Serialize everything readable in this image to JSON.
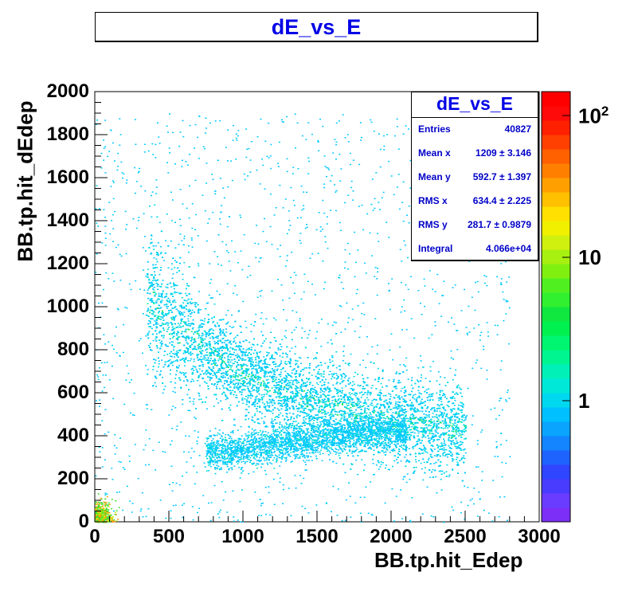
{
  "chart_data": {
    "type": "heatmap",
    "title": "dE_vs_E",
    "xlabel": "BB.tp.hit_Edep",
    "ylabel": "BB.tp.hit_dEdep",
    "xlim": [
      0,
      3000
    ],
    "ylim": [
      0,
      2000
    ],
    "x_ticks": [
      "0",
      "500",
      "1000",
      "1500",
      "2000",
      "2500",
      "3000"
    ],
    "y_ticks": [
      "0",
      "200",
      "400",
      "600",
      "800",
      "1000",
      "1200",
      "1400",
      "1600",
      "1800",
      "2000"
    ],
    "z_scale": "log",
    "palette_labels": [
      {
        "base": "10",
        "exp": "2",
        "value": 100
      },
      {
        "base": "10",
        "exp": "",
        "value": 10
      },
      {
        "base": "1",
        "exp": "",
        "value": 1
      }
    ],
    "bands": [
      {
        "x": [
          350,
          500,
          700,
          900,
          1100,
          1300,
          1500,
          1700,
          1900,
          2100,
          2300,
          2500
        ],
        "y": [
          1050,
          920,
          820,
          720,
          650,
          600,
          560,
          520,
          490,
          460,
          440,
          430
        ]
      },
      {
        "x": [
          750,
          900,
          1100,
          1300,
          1500,
          1700,
          1900,
          2100
        ],
        "y": [
          330,
          330,
          350,
          370,
          390,
          410,
          420,
          430
        ]
      }
    ],
    "hotspot": {
      "x": [
        0,
        100
      ],
      "y": [
        0,
        80
      ]
    },
    "stats": {
      "title": "dE_vs_E",
      "entries_label": "Entries",
      "entries": "40827",
      "meanx_label": "Mean x",
      "meanx": "1209 ±  3.146",
      "meany_label": "Mean y",
      "meany": "592.7 ±  1.397",
      "rmsx_label": "RMS x",
      "rmsx": "634.4 ±  2.225",
      "rmsy_label": "RMS y",
      "rmsy": "281.7 ± 0.9879",
      "integral_label": "Integral",
      "integral": "4.066e+04"
    }
  }
}
